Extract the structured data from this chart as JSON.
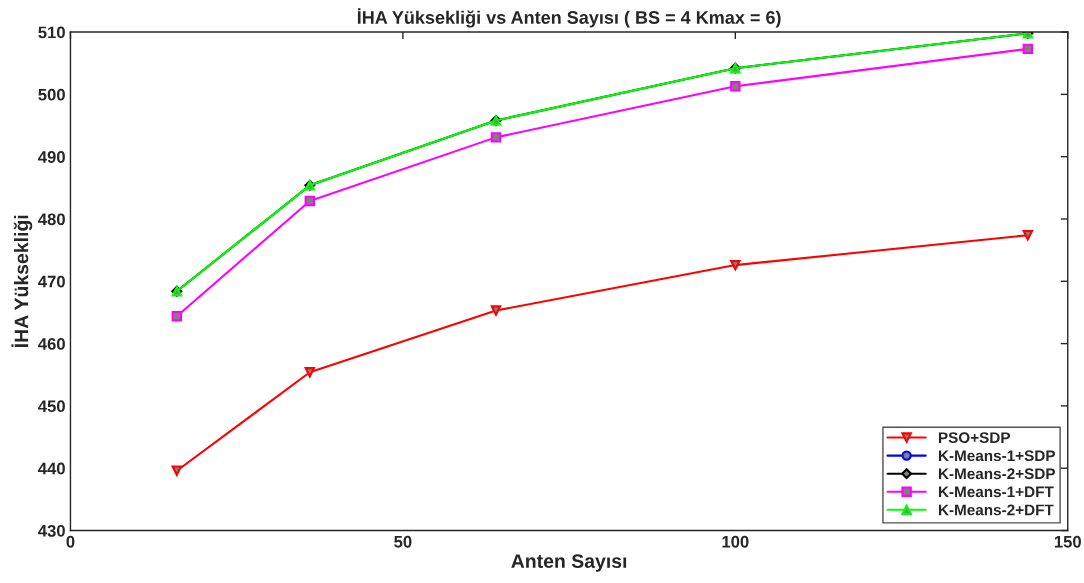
{
  "chart_data": {
    "type": "line",
    "title": "İHA Yüksekliği vs Anten Sayısı ( BS = 4 Kmax = 6)",
    "xlabel": "Anten Sayısı",
    "ylabel": "İHA Yüksekliği",
    "x": [
      16,
      36,
      64,
      100,
      144
    ],
    "series": [
      {
        "name": "PSO+SDP",
        "color": "#ff0000",
        "marker": "triangle_down",
        "values": [
          439.6,
          455.4,
          465.3,
          472.6,
          477.4
        ]
      },
      {
        "name": "K-Means-1+SDP",
        "color": "#0000ff",
        "marker": "circle",
        "values": [
          null,
          null,
          null,
          null,
          null
        ]
      },
      {
        "name": "K-Means-2+SDP",
        "color": "#000000",
        "marker": "diamond",
        "values": [
          468.4,
          485.4,
          495.8,
          504.2,
          509.8
        ]
      },
      {
        "name": "K-Means-1+DFT",
        "color": "#ff00ff",
        "marker": "square",
        "values": [
          464.4,
          482.9,
          493.1,
          501.3,
          507.3
        ]
      },
      {
        "name": "K-Means-2+DFT",
        "color": "#00ff00",
        "marker": "triangle",
        "values": [
          468.4,
          485.4,
          495.8,
          504.2,
          509.8
        ]
      }
    ],
    "xlim": [
      0,
      150
    ],
    "xticks": [
      0,
      50,
      100,
      150
    ],
    "ylim": [
      430,
      510
    ],
    "yticks": [
      430,
      440,
      450,
      460,
      470,
      480,
      490,
      500,
      510
    ],
    "grid": false,
    "legend": "bottom right",
    "line_style": "solid"
  }
}
